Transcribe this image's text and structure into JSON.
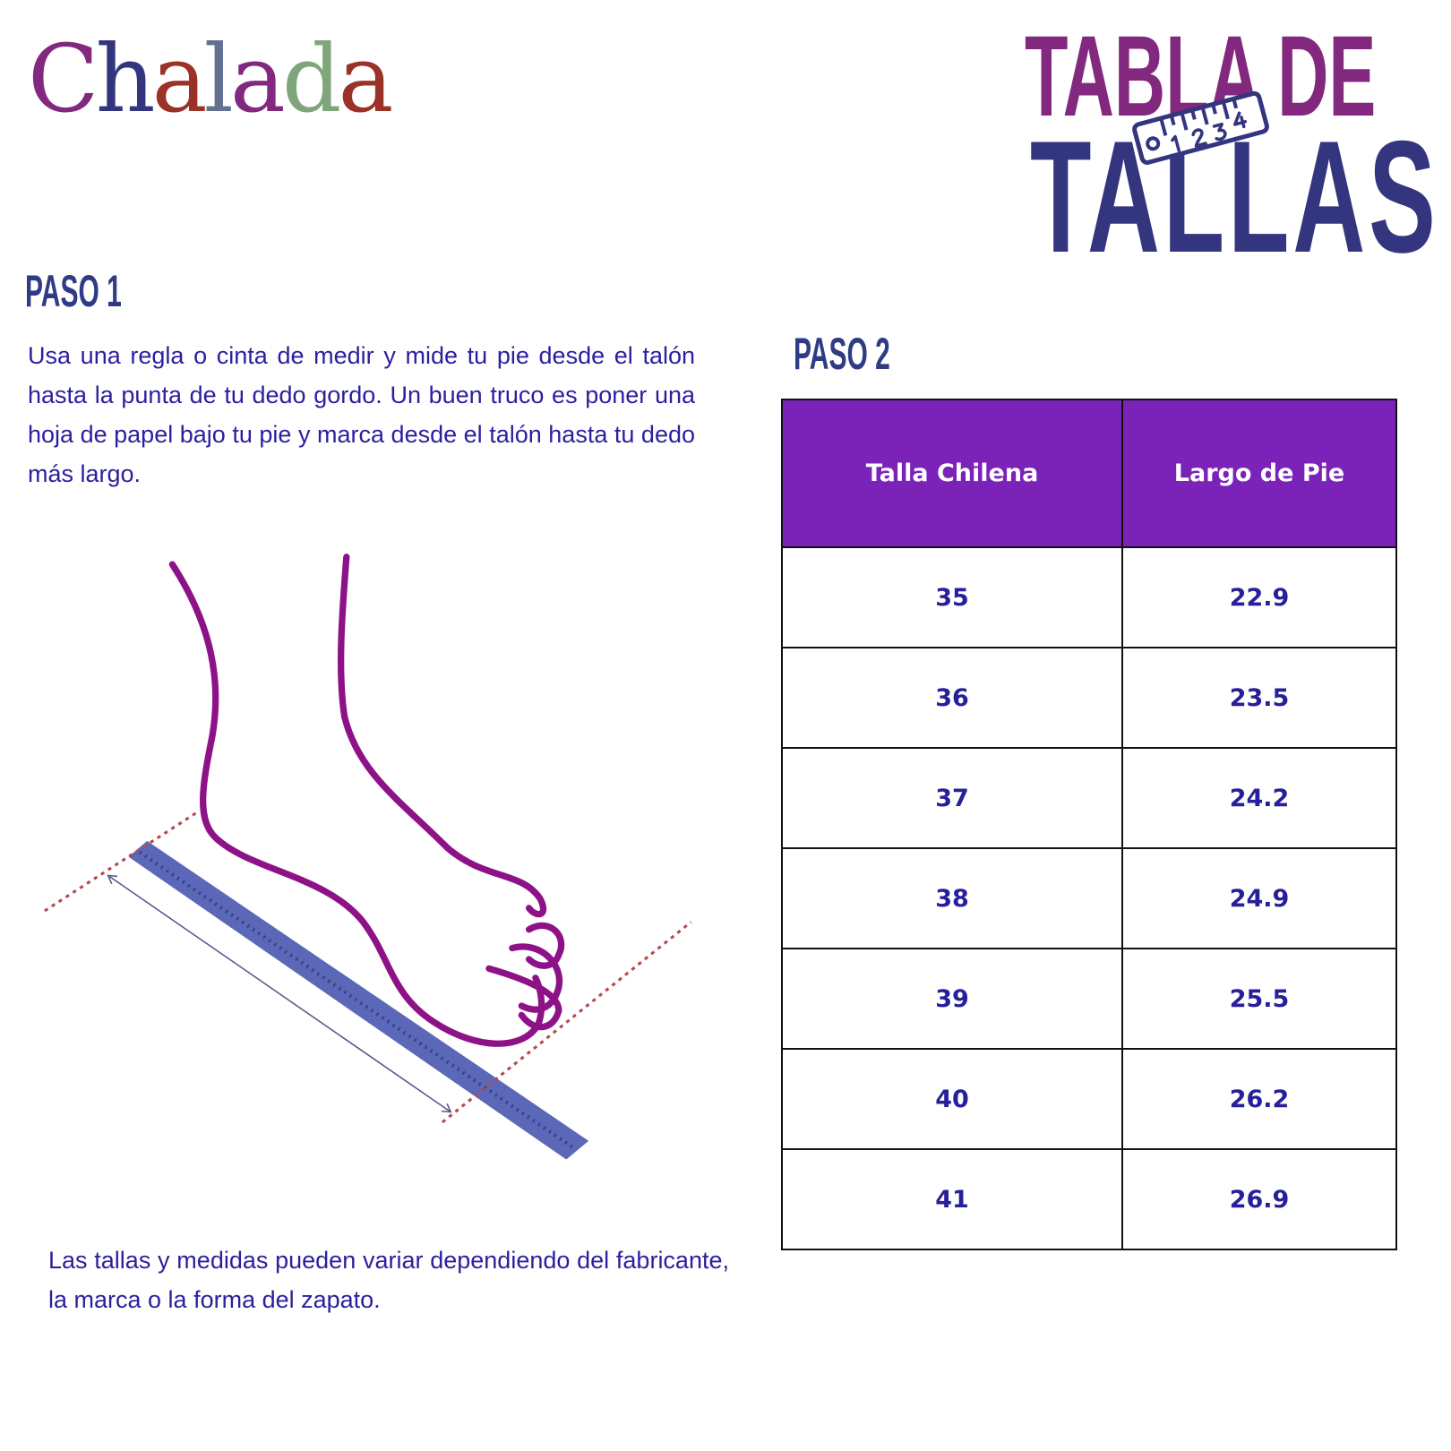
{
  "logo": {
    "text": "Chalada",
    "letters": [
      "C",
      "h",
      "a",
      "l",
      "a",
      "d",
      "a"
    ],
    "colors": [
      "#82297f",
      "#33357f",
      "#9a3227",
      "#63708f",
      "#82297f",
      "#7fa57a",
      "#9a3227"
    ]
  },
  "title": {
    "line1": "TABLA DE",
    "line2": "TALLAS",
    "ruler_numbers": [
      "0",
      "1",
      "2",
      "3",
      "4"
    ],
    "color1": "#82297f",
    "color2": "#33357f"
  },
  "paso1": {
    "heading": "PASO 1",
    "text": "Usa una regla o cinta de medir y mide tu pie desde el talón hasta la punta de tu dedo gordo. Un buen truco es poner una hoja de papel bajo tu pie y marca desde el talón hasta tu dedo más largo."
  },
  "note": "Las tallas y medidas pueden variar dependiendo del fabricante, la marca o la forma del zapato.",
  "paso2": {
    "heading": "PASO 2",
    "headers": [
      "Talla Chilena",
      "Largo de Pie"
    ],
    "rows": [
      [
        "35",
        "22.9"
      ],
      [
        "36",
        "23.5"
      ],
      [
        "37",
        "24.2"
      ],
      [
        "38",
        "24.9"
      ],
      [
        "39",
        "25.5"
      ],
      [
        "40",
        "26.2"
      ],
      [
        "41",
        "26.9"
      ]
    ],
    "header_color": "#7b22b8"
  }
}
